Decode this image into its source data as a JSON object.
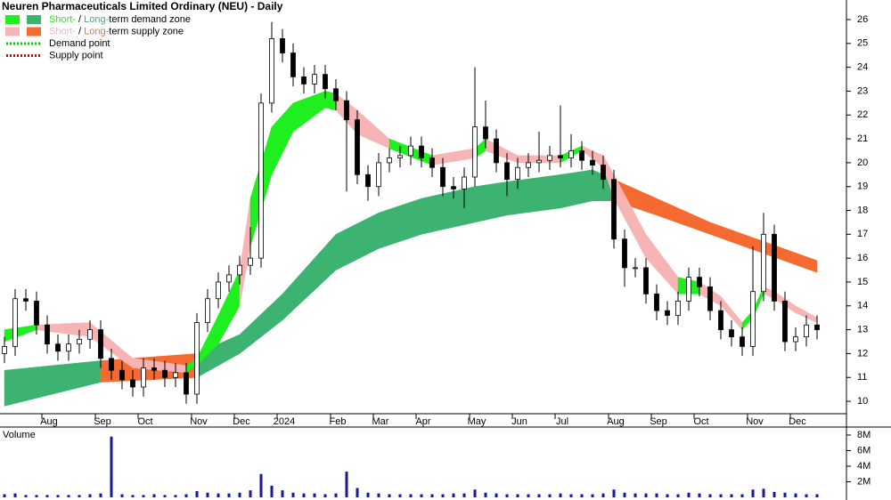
{
  "chart_data": {
    "type": "candlestick",
    "title": "Neuren Pharmaceuticals Limited Ordinary (NEU) - Daily",
    "categories": [
      null,
      null,
      null,
      null,
      "Aug",
      null,
      null,
      null,
      null,
      "Sep",
      null,
      null,
      null,
      "Oct",
      null,
      null,
      null,
      null,
      "Nov",
      null,
      null,
      null,
      "Dec",
      null,
      null,
      null,
      "2024",
      null,
      null,
      null,
      null,
      "Feb",
      null,
      null,
      null,
      "Mar",
      null,
      null,
      null,
      "Apr",
      null,
      null,
      null,
      null,
      "May",
      null,
      null,
      null,
      "Jun",
      null,
      null,
      null,
      "Jul",
      null,
      null,
      null,
      null,
      "Aug",
      null,
      null,
      null,
      "Sep",
      null,
      null,
      null,
      "Oct",
      null,
      null,
      null,
      null,
      "Nov",
      null,
      null,
      null,
      "Dec",
      null,
      null
    ],
    "open": [
      12.0,
      12.3,
      14.3,
      14.2,
      13.2,
      12.4,
      12.1,
      12.4,
      12.6,
      13.0,
      11.8,
      11.3,
      10.9,
      10.6,
      11.4,
      11.3,
      11.0,
      11.2,
      10.3,
      13.3,
      14.3,
      15.0,
      15.3,
      15.7,
      16.0,
      22.5,
      25.2,
      24.6,
      23.6,
      23.3,
      23.7,
      23.1,
      22.6,
      21.8,
      19.5,
      19.0,
      20.0,
      20.2,
      20.3,
      20.7,
      20.2,
      19.8,
      19.0,
      18.9,
      19.4,
      21.5,
      21.0,
      20.0,
      19.3,
      19.8,
      20.0,
      20.1,
      20.3,
      20.2,
      20.5,
      20.1,
      19.9,
      19.3,
      16.8,
      15.6,
      15.6,
      14.5,
      13.8,
      13.6,
      14.2,
      15.2,
      14.8,
      13.8,
      13.0,
      12.7,
      12.3,
      14.6,
      17.0,
      14.2,
      12.5,
      12.7,
      13.2
    ],
    "high": [
      12.7,
      14.7,
      14.7,
      14.6,
      13.6,
      12.8,
      12.8,
      13.0,
      13.4,
      13.4,
      12.2,
      11.7,
      11.3,
      11.8,
      11.8,
      11.7,
      11.6,
      11.6,
      13.7,
      14.7,
      15.4,
      15.7,
      16.1,
      17.3,
      22.9,
      25.9,
      25.6,
      25.0,
      24.0,
      24.1,
      24.1,
      23.5,
      23.0,
      22.2,
      19.9,
      20.4,
      20.6,
      20.7,
      21.1,
      21.1,
      20.6,
      20.2,
      19.4,
      19.8,
      24.0,
      22.6,
      21.4,
      20.4,
      20.2,
      20.4,
      21.3,
      20.7,
      22.4,
      21.2,
      20.9,
      20.5,
      20.3,
      19.7,
      17.2,
      16.0,
      16.0,
      14.9,
      14.2,
      14.6,
      15.6,
      15.6,
      15.2,
      14.2,
      13.4,
      13.1,
      16.5,
      17.9,
      17.4,
      14.6,
      13.1,
      13.6,
      13.6
    ],
    "low": [
      11.6,
      11.9,
      13.8,
      12.8,
      12.0,
      11.7,
      11.7,
      12.0,
      12.2,
      11.4,
      10.9,
      10.5,
      10.2,
      10.2,
      10.9,
      10.6,
      10.6,
      9.9,
      9.9,
      12.9,
      13.9,
      14.6,
      14.9,
      15.3,
      15.6,
      22.1,
      24.2,
      23.2,
      22.9,
      22.9,
      22.7,
      22.2,
      18.8,
      19.1,
      18.4,
      18.6,
      19.6,
      19.8,
      19.9,
      19.8,
      19.4,
      18.6,
      18.5,
      18.1,
      19.0,
      20.6,
      19.6,
      18.6,
      18.9,
      19.4,
      19.6,
      19.7,
      19.8,
      19.8,
      19.7,
      19.5,
      18.9,
      16.4,
      14.8,
      15.2,
      14.1,
      13.4,
      13.2,
      13.2,
      13.8,
      14.4,
      13.4,
      12.6,
      12.3,
      11.9,
      11.9,
      14.2,
      13.8,
      12.1,
      12.1,
      12.3,
      12.6
    ],
    "close": [
      12.3,
      14.3,
      14.2,
      13.2,
      12.4,
      12.1,
      12.4,
      12.6,
      13.0,
      11.8,
      11.3,
      10.9,
      10.6,
      11.4,
      11.3,
      11.0,
      11.2,
      10.3,
      13.3,
      14.3,
      15.0,
      15.3,
      15.7,
      16.0,
      22.5,
      25.2,
      24.6,
      23.6,
      23.3,
      23.7,
      23.1,
      22.6,
      21.8,
      19.5,
      19.0,
      20.0,
      20.2,
      20.3,
      20.7,
      20.2,
      19.8,
      19.0,
      18.9,
      19.4,
      21.5,
      21.0,
      20.0,
      19.3,
      19.8,
      20.0,
      20.1,
      20.3,
      20.2,
      20.5,
      20.1,
      19.9,
      19.3,
      16.8,
      15.6,
      15.6,
      14.5,
      13.8,
      13.6,
      14.2,
      15.2,
      14.8,
      13.8,
      13.0,
      12.7,
      12.3,
      14.6,
      17.0,
      14.2,
      12.5,
      12.7,
      13.2,
      13.0
    ],
    "up_color": "#ffffff",
    "down_color": "#000000",
    "ylim": [
      9.48,
      26.82
    ],
    "yticks": [
      10,
      11,
      12,
      13,
      14,
      15,
      16,
      17,
      18,
      19,
      20,
      21,
      22,
      23,
      24,
      25,
      26
    ],
    "zones": {
      "short": {
        "x": [
          0,
          3,
          8,
          12,
          17,
          18,
          20,
          22,
          23,
          25,
          27,
          30,
          31,
          33,
          36,
          40,
          44,
          45,
          48,
          52,
          54,
          56,
          57,
          60,
          63,
          65,
          67,
          69,
          70,
          71,
          72,
          74,
          76
        ],
        "lower": [
          12.5,
          13.0,
          12.7,
          11.4,
          11.2,
          11.5,
          12.4,
          14.0,
          16.5,
          19.5,
          21.3,
          22.3,
          22.2,
          21.2,
          20.6,
          19.9,
          20.2,
          20.5,
          20.0,
          20.0,
          20.5,
          19.8,
          18.5,
          16.0,
          14.5,
          14.5,
          14.0,
          13.0,
          13.5,
          14.5,
          14.3,
          13.7,
          13.3
        ],
        "upper": [
          13.0,
          13.2,
          13.3,
          11.8,
          11.5,
          11.8,
          13.6,
          15.5,
          18.5,
          21.5,
          22.5,
          23.0,
          22.9,
          22.2,
          21.0,
          20.3,
          20.6,
          21.0,
          20.3,
          20.3,
          20.7,
          20.3,
          19.5,
          17.0,
          15.2,
          15.0,
          14.4,
          13.3,
          13.8,
          14.8,
          14.6,
          14.0,
          13.5
        ],
        "demand_color": "#1fef1f",
        "supply_color": "#f7b4b4"
      },
      "long": {
        "x": [
          0,
          9,
          18,
          22,
          26,
          31,
          35,
          39,
          44,
          47,
          52,
          55,
          57,
          61,
          66,
          71,
          76
        ],
        "lower": [
          9.8,
          10.8,
          11.0,
          12.0,
          13.4,
          15.5,
          16.4,
          17.0,
          17.5,
          17.8,
          18.1,
          18.4,
          18.4,
          17.8,
          17.0,
          16.2,
          15.4
        ],
        "upper": [
          11.3,
          11.7,
          12.0,
          12.8,
          14.5,
          17.0,
          17.9,
          18.5,
          19.0,
          19.2,
          19.5,
          19.7,
          19.3,
          18.5,
          17.5,
          16.7,
          15.9
        ],
        "demand_color": "#3cb371",
        "supply_color": "#f56a30"
      }
    },
    "legend": [
      {
        "parts": [
          "Short-",
          " / ",
          "Long-",
          "term demand zone"
        ],
        "zone": "demand"
      },
      {
        "parts": [
          "Short-",
          " / ",
          "Long-",
          "term supply zone"
        ],
        "zone": "supply"
      },
      {
        "text": "Demand point",
        "color": "#00cc00"
      },
      {
        "text": "Supply point",
        "color": "#e00000"
      }
    ],
    "volume": {
      "title": "Volume",
      "color": "#1a1a8c",
      "title_color": "#4b1f8c",
      "values": [
        0.4,
        0.5,
        0.3,
        0.3,
        0.3,
        0.3,
        0.3,
        0.3,
        0.4,
        0.5,
        7.8,
        0.4,
        0.3,
        0.3,
        0.4,
        0.3,
        0.3,
        0.4,
        0.8,
        0.6,
        0.5,
        0.5,
        0.6,
        0.9,
        3.0,
        1.5,
        0.9,
        0.6,
        0.5,
        0.5,
        0.4,
        0.5,
        3.3,
        1.2,
        0.6,
        0.5,
        0.4,
        0.4,
        0.4,
        0.4,
        0.4,
        0.4,
        0.5,
        0.5,
        1.0,
        0.6,
        0.5,
        0.4,
        0.4,
        0.4,
        0.4,
        0.4,
        0.5,
        0.4,
        0.4,
        0.4,
        0.5,
        1.0,
        0.6,
        0.5,
        0.5,
        0.5,
        0.4,
        0.4,
        0.6,
        0.5,
        0.4,
        0.4,
        0.4,
        0.4,
        1.0,
        1.1,
        0.7,
        0.6,
        0.5,
        0.4,
        0.4
      ],
      "ylim": [
        0,
        8.8
      ],
      "yticks": [
        {
          "value": 2,
          "label": "2M"
        },
        {
          "value": 4,
          "label": "4M"
        },
        {
          "value": 6,
          "label": "6M"
        },
        {
          "value": 8,
          "label": "8M"
        }
      ]
    }
  }
}
